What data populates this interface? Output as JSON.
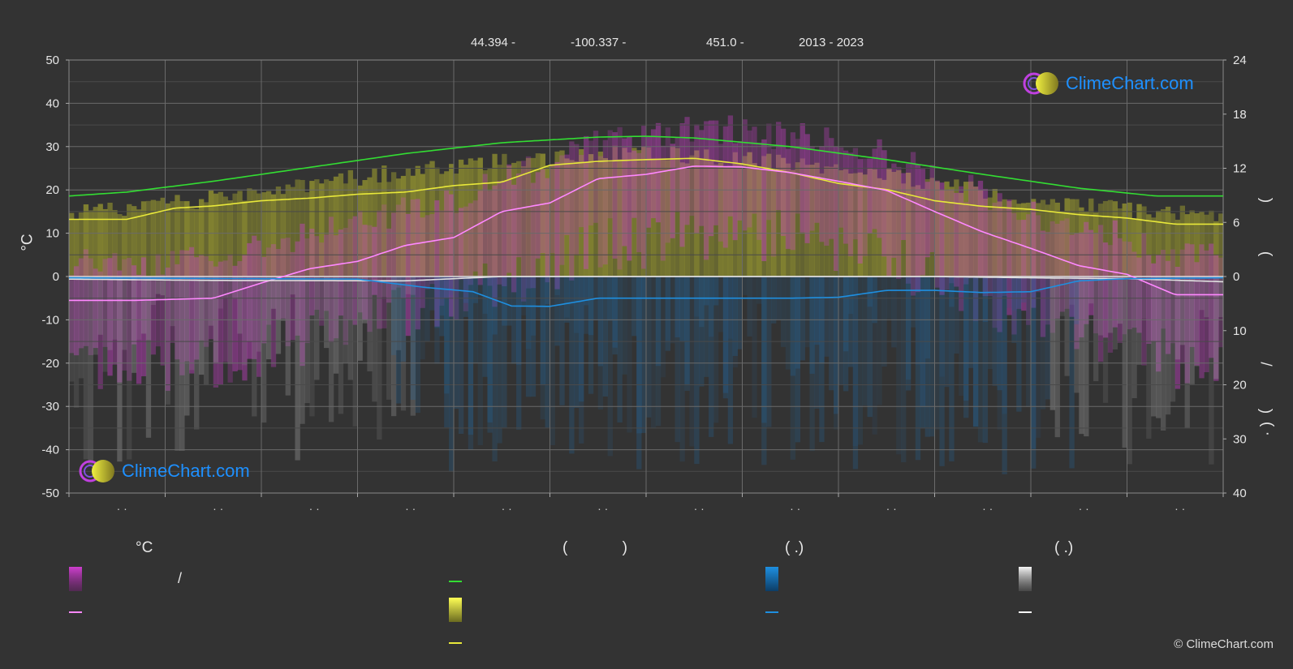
{
  "header": {
    "lat": "44.394 -",
    "lon": "-100.337 -",
    "elevation": "451.0 -",
    "years": "2013 - 2023"
  },
  "axes": {
    "left_unit": "°C",
    "right_labels": [
      ")",
      "(",
      ")",
      "/",
      ")",
      "( ·"
    ],
    "month_marks": [
      "· ·",
      "· ·",
      "· ·",
      "· ·",
      "· ·",
      "· ·",
      "· ·",
      "· ·",
      "· ·",
      "· ·",
      "· ·",
      "· ·"
    ]
  },
  "legend": {
    "headers": [
      "°C",
      "( )",
      "( .)",
      "( .)"
    ],
    "slash": "/"
  },
  "branding": {
    "logo_text": "ClimeChart.com",
    "copyright": "© ClimeChart.com"
  },
  "colors": {
    "background": "#333333",
    "temp_band": "#d040d0",
    "mean_temp": "#ff88ff",
    "daylight": "#33dd33",
    "sunshine": "#e8e83a",
    "rain": "#1e8fe0",
    "snow": "#e0e0e0",
    "grid": "#5a5a5a"
  },
  "chart_data": {
    "type": "line",
    "y_left": {
      "label": "°C",
      "ticks": [
        50,
        40,
        30,
        20,
        10,
        0,
        -10,
        -20,
        -30,
        -40,
        -50
      ],
      "range": [
        -50,
        50
      ]
    },
    "y_right_upper": {
      "ticks": [
        24,
        18,
        12,
        6,
        0
      ],
      "range": [
        0,
        24
      ]
    },
    "y_right_lower": {
      "ticks": [
        10,
        20,
        30,
        40
      ],
      "range": [
        0,
        40
      ]
    },
    "x": {
      "months": 12
    },
    "series": [
      {
        "key": "daylight",
        "points": [
          [
            0.0,
            18.6
          ],
          [
            0.6,
            19.5
          ],
          [
            1.5,
            22.0
          ],
          [
            2.5,
            25.2
          ],
          [
            3.5,
            28.4
          ],
          [
            4.5,
            30.9
          ],
          [
            5.5,
            32.2
          ],
          [
            6.0,
            32.4
          ],
          [
            6.5,
            32.0
          ],
          [
            7.5,
            30.0
          ],
          [
            8.5,
            27.0
          ],
          [
            9.5,
            23.6
          ],
          [
            10.5,
            20.4
          ],
          [
            11.3,
            18.6
          ],
          [
            12.0,
            18.6
          ]
        ]
      },
      {
        "key": "sunshine",
        "points": [
          [
            0.0,
            13.2
          ],
          [
            0.6,
            13.2
          ],
          [
            1.1,
            15.8
          ],
          [
            1.5,
            16.3
          ],
          [
            2.0,
            17.5
          ],
          [
            2.5,
            18.1
          ],
          [
            3.0,
            19.0
          ],
          [
            3.5,
            19.5
          ],
          [
            4.0,
            21.0
          ],
          [
            4.5,
            21.8
          ],
          [
            5.0,
            25.7
          ],
          [
            5.5,
            26.6
          ],
          [
            6.0,
            27.0
          ],
          [
            6.5,
            27.3
          ],
          [
            7.0,
            26.0
          ],
          [
            7.5,
            24.0
          ],
          [
            8.0,
            21.5
          ],
          [
            8.5,
            20.1
          ],
          [
            9.0,
            17.5
          ],
          [
            9.5,
            16.2
          ],
          [
            10.0,
            15.5
          ],
          [
            10.5,
            14.3
          ],
          [
            11.0,
            13.5
          ],
          [
            11.5,
            12.1
          ],
          [
            12.0,
            12.1
          ]
        ]
      },
      {
        "key": "mean_temp",
        "points": [
          [
            0.0,
            -5.5
          ],
          [
            0.7,
            -5.5
          ],
          [
            1.5,
            -5.0
          ],
          [
            2.0,
            -1.5
          ],
          [
            2.5,
            1.8
          ],
          [
            3.0,
            3.5
          ],
          [
            3.5,
            7.2
          ],
          [
            4.0,
            9.0
          ],
          [
            4.5,
            15.0
          ],
          [
            5.0,
            17.0
          ],
          [
            5.5,
            22.6
          ],
          [
            6.0,
            23.6
          ],
          [
            6.5,
            25.5
          ],
          [
            7.0,
            25.3
          ],
          [
            7.5,
            24.0
          ],
          [
            8.0,
            22.0
          ],
          [
            8.5,
            19.9
          ],
          [
            9.0,
            15.0
          ],
          [
            9.5,
            10.3
          ],
          [
            10.0,
            6.5
          ],
          [
            10.5,
            2.5
          ],
          [
            11.0,
            0.5
          ],
          [
            11.5,
            -4.2
          ],
          [
            12.0,
            -4.2
          ]
        ]
      },
      {
        "key": "snow",
        "points": [
          [
            0.0,
            -0.6
          ],
          [
            1.5,
            -0.9
          ],
          [
            3.5,
            -1.0
          ],
          [
            4.0,
            -0.5
          ],
          [
            4.5,
            0.0
          ],
          [
            9.0,
            0.0
          ],
          [
            10.0,
            -0.3
          ],
          [
            11.0,
            -0.5
          ],
          [
            12.0,
            -1.2
          ]
        ]
      },
      {
        "key": "rain",
        "points": [
          [
            0.0,
            -0.3
          ],
          [
            3.0,
            -0.6
          ],
          [
            3.7,
            -2.5
          ],
          [
            4.2,
            -3.5
          ],
          [
            4.6,
            -6.8
          ],
          [
            5.0,
            -6.9
          ],
          [
            5.5,
            -5.0
          ],
          [
            6.5,
            -5.0
          ],
          [
            7.5,
            -5.0
          ],
          [
            8.0,
            -4.8
          ],
          [
            8.5,
            -3.2
          ],
          [
            9.0,
            -3.2
          ],
          [
            9.5,
            -3.7
          ],
          [
            10.0,
            -3.5
          ],
          [
            10.5,
            -1.0
          ],
          [
            11.0,
            -0.5
          ],
          [
            12.0,
            -0.3
          ]
        ]
      }
    ]
  }
}
